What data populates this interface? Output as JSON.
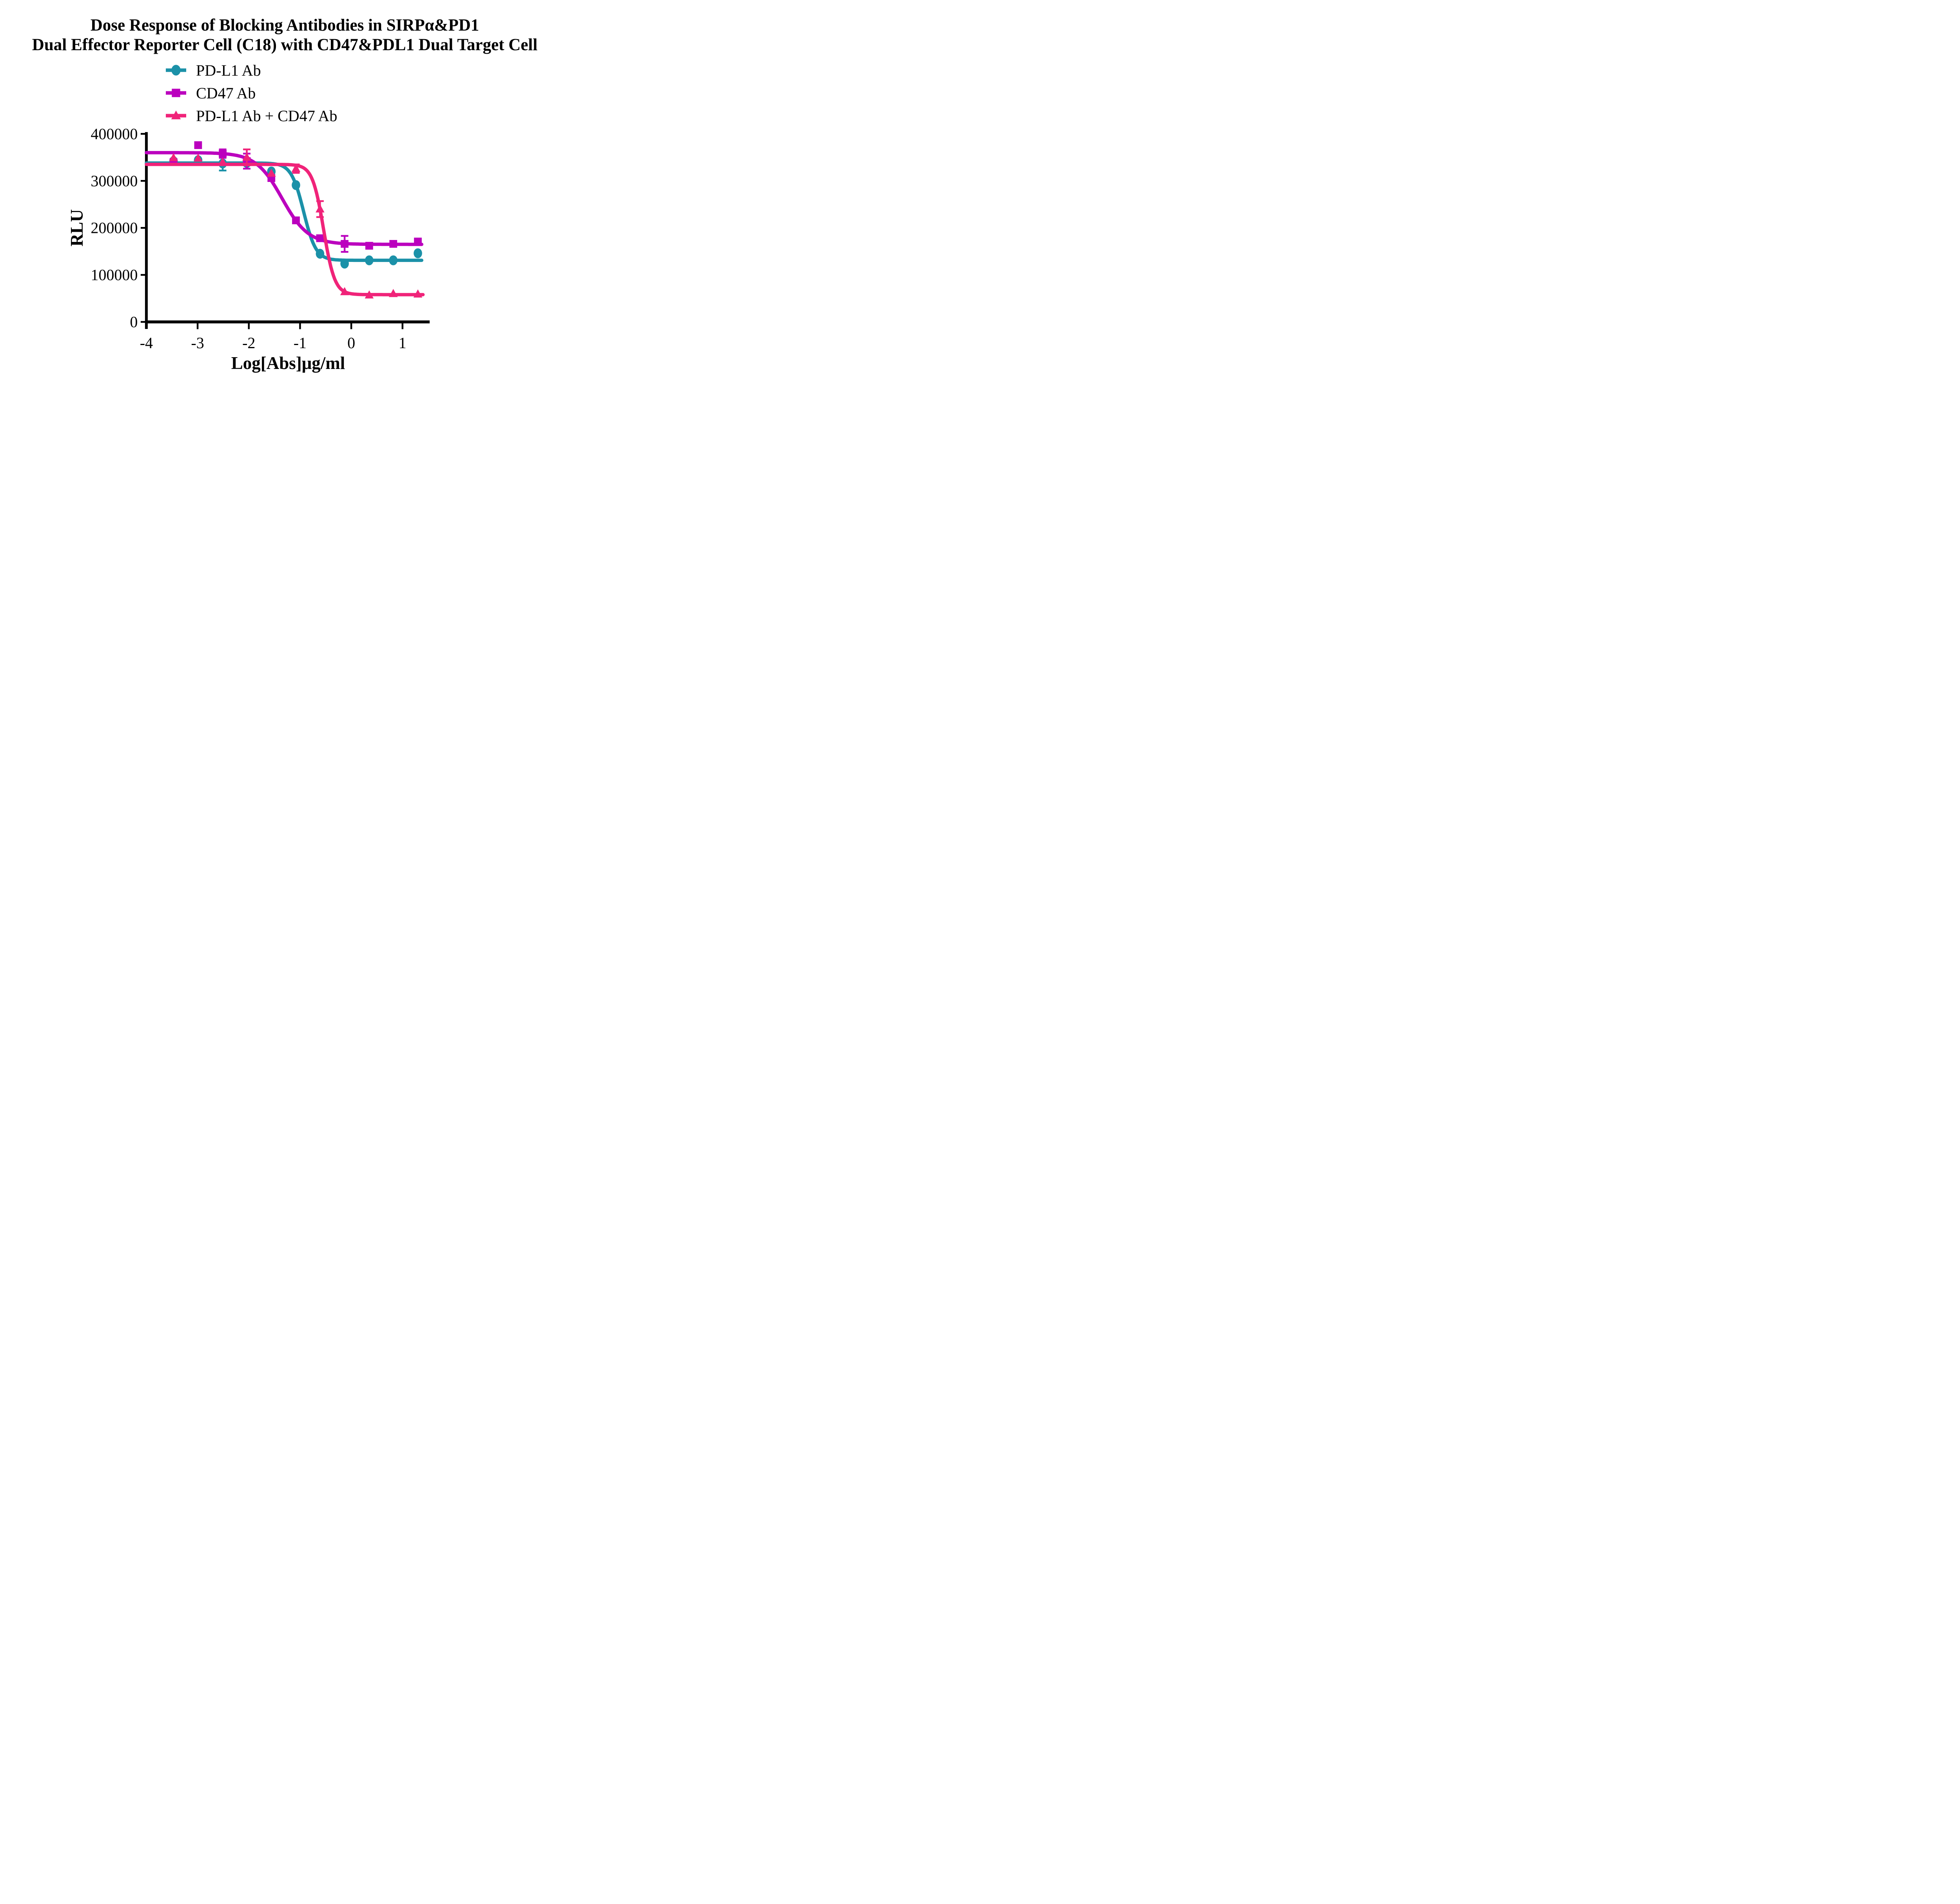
{
  "title": {
    "line1": "Dose Response of Blocking Antibodies in SIRPα&PD1",
    "line2": "Dual Effector Reporter Cell (C18) with CD47&PDL1 Dual Target Cell"
  },
  "chart_data": {
    "type": "line",
    "title": "Dose Response of Blocking Antibodies in SIRPα&PD1 Dual Effector Reporter Cell (C18) with CD47&PDL1 Dual Target Cell",
    "xlabel": "Log[Abs]μg/ml",
    "ylabel": "RLU",
    "xlim": [
      -4,
      1.53
    ],
    "ylim": [
      0,
      400000
    ],
    "grid": false,
    "legend_position": "top-left",
    "x_ticks": [
      -4,
      -3,
      -2,
      -1,
      0,
      1
    ],
    "x_tick_labels": [
      "-4",
      "-3",
      "-2",
      "-1",
      "0",
      "1"
    ],
    "y_ticks": [
      0,
      100000,
      200000,
      300000,
      400000
    ],
    "y_tick_labels": [
      "0",
      "100000",
      "200000",
      "300000",
      "400000"
    ],
    "x": [
      -3.47,
      -2.99,
      -2.51,
      -2.04,
      -1.56,
      -1.08,
      -0.61,
      -0.13,
      0.35,
      0.82,
      1.3
    ],
    "series": [
      {
        "name": "PD-L1 Ab",
        "color": "#1B91A8",
        "marker": "circle",
        "values": [
          342000,
          344000,
          337000,
          338000,
          320000,
          291000,
          145000,
          124000,
          131000,
          131000,
          146000
        ],
        "error_bars": {
          "-2.51": 15000
        },
        "fit": {
          "top": 338000,
          "bottom": 131000,
          "logEC50": -0.93,
          "hill": 3.6,
          "x_start": -4,
          "x_end": 1.38
        }
      },
      {
        "name": "CD47 Ab",
        "color": "#BB00BE",
        "marker": "square",
        "values": [
          340000,
          376000,
          358000,
          342000,
          306000,
          216000,
          178000,
          166000,
          162000,
          166000,
          171000
        ],
        "error_bars": {
          "-2.51": 9000,
          "-2.04": 16000,
          "-0.13": 17000
        },
        "fit": {
          "top": 360000,
          "bottom": 165000,
          "logEC50": -1.35,
          "hill": 1.7,
          "x_start": -4,
          "x_end": 1.38
        }
      },
      {
        "name": "PD-L1 Ab + CD47 Ab",
        "color": "#F02379",
        "marker": "triangle",
        "values": [
          349000,
          348000,
          340000,
          350000,
          316000,
          326000,
          240000,
          64000,
          57000,
          60000,
          59000
        ],
        "error_bars": {
          "-2.04": 17000,
          "-1.08": 9000,
          "-0.61": 17000
        },
        "fit": {
          "top": 335000,
          "bottom": 58000,
          "logEC50": -0.54,
          "hill": 4.0,
          "x_start": -4,
          "x_end": 1.42
        }
      }
    ]
  }
}
